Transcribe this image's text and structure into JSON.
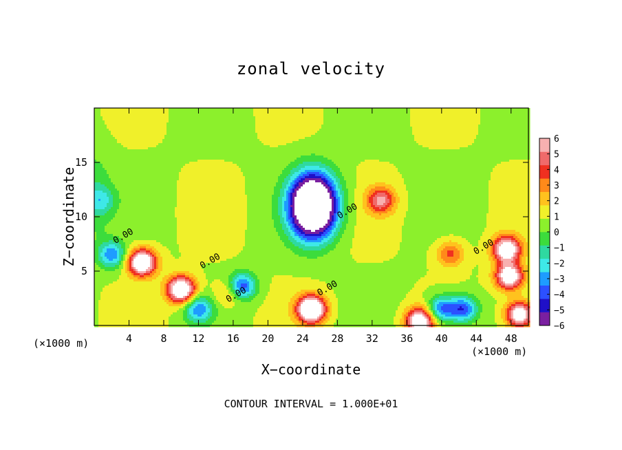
{
  "chart_data": {
    "type": "heatmap",
    "title": "zonal velocity",
    "xlabel": "X−coordinate",
    "ylabel": "Z−coordinate",
    "x_unit_label": "(×1000 m)",
    "x_ticks": [
      4,
      8,
      12,
      16,
      20,
      24,
      28,
      32,
      36,
      40,
      44,
      48
    ],
    "x_tick_labels": [
      "4",
      "8",
      "12",
      "16",
      "20",
      "24",
      "28",
      "32",
      "36",
      "40",
      "44",
      "48"
    ],
    "xlim": [
      0,
      50
    ],
    "y_ticks": [
      5,
      10,
      15
    ],
    "y_tick_labels": [
      "5",
      "10",
      "15"
    ],
    "ylim": [
      0,
      20
    ],
    "colorbar": {
      "ticks": [
        6,
        5,
        4,
        3,
        2,
        1,
        0,
        -1,
        -2,
        -3,
        -4,
        -5,
        -6
      ],
      "tick_labels": [
        "6",
        "5",
        "4",
        "3",
        "2",
        "1",
        "0",
        "−1",
        "−2",
        "−3",
        "−4",
        "−5",
        "−6"
      ],
      "range": [
        -6,
        6
      ],
      "colors": [
        "#7a1fa0",
        "#1f10c8",
        "#2c50ff",
        "#1e9cff",
        "#3ee8e8",
        "#2fd9a0",
        "#3cdc3c",
        "#8cf02c",
        "#f0f02a",
        "#ffc21e",
        "#ff8a1a",
        "#f03020",
        "#f06a6a",
        "#f8b0b0"
      ]
    },
    "white_regions_exceed_range": true,
    "features": [
      {
        "kind": "min",
        "x": 25.2,
        "z": 11.0,
        "value": -14
      },
      {
        "kind": "max",
        "x": 33.0,
        "z": 11.5,
        "value": 4.5
      },
      {
        "kind": "max",
        "x": 5.5,
        "z": 5.8,
        "value": 8
      },
      {
        "kind": "max",
        "x": 10.0,
        "z": 3.3,
        "value": 8
      },
      {
        "kind": "max",
        "x": 25.0,
        "z": 1.5,
        "value": 9
      },
      {
        "kind": "max",
        "x": 47.5,
        "z": 7.0,
        "value": 7
      },
      {
        "kind": "max",
        "x": 47.8,
        "z": 4.5,
        "value": 7
      },
      {
        "kind": "max",
        "x": 37.5,
        "z": 0.4,
        "value": 7
      },
      {
        "kind": "max",
        "x": 49.0,
        "z": 1.0,
        "value": 7
      },
      {
        "kind": "max",
        "x": 41.0,
        "z": 6.6,
        "value": 3
      },
      {
        "kind": "max",
        "x": 15.5,
        "z": 3.0,
        "value": 2
      },
      {
        "kind": "min",
        "x": 17.0,
        "z": 3.6,
        "value": -5
      },
      {
        "kind": "min",
        "x": 42.5,
        "z": 1.5,
        "value": -5
      },
      {
        "kind": "min",
        "x": 12.0,
        "z": 1.5,
        "value": -4
      },
      {
        "kind": "min",
        "x": 2.0,
        "z": 6.5,
        "value": -4
      },
      {
        "kind": "min",
        "x": 0.8,
        "z": 11.5,
        "value": -2
      },
      {
        "kind": "min",
        "x": 40.0,
        "z": 1.5,
        "value": -4.5
      }
    ],
    "contour_labels": [
      {
        "text": "0.00",
        "x": 3.5,
        "z": 8.0
      },
      {
        "text": "0.00",
        "x": 13.5,
        "z": 5.7
      },
      {
        "text": "0.00",
        "x": 16.5,
        "z": 2.6
      },
      {
        "text": "0.00",
        "x": 27.0,
        "z": 3.2
      },
      {
        "text": "0.00",
        "x": 29.3,
        "z": 10.3
      },
      {
        "text": "0.00",
        "x": 45.0,
        "z": 7.0
      }
    ],
    "contour_interval_text": "CONTOUR INTERVAL = 1.000E+01"
  }
}
